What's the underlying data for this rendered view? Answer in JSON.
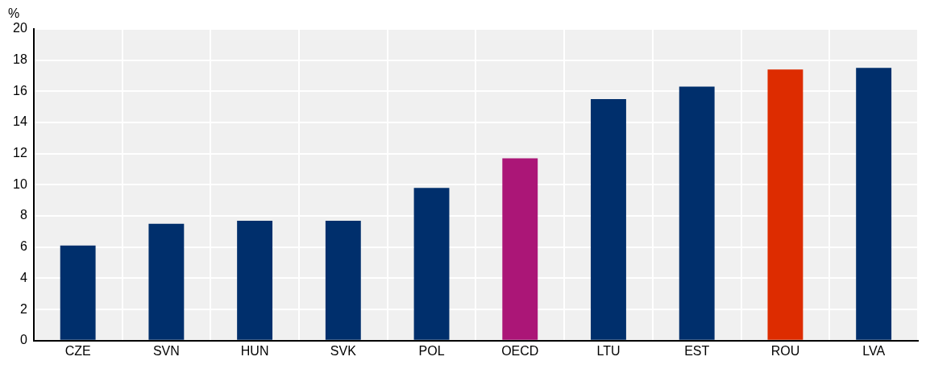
{
  "chart_data": {
    "type": "bar",
    "ylabel": "%",
    "categories": [
      "CZE",
      "SVN",
      "HUN",
      "SVK",
      "POL",
      "OECD",
      "LTU",
      "EST",
      "ROU",
      "LVA"
    ],
    "values": [
      6.1,
      7.5,
      7.7,
      7.7,
      9.8,
      11.7,
      15.5,
      16.3,
      17.4,
      17.5
    ],
    "colors": [
      "#002f6c",
      "#002f6c",
      "#002f6c",
      "#002f6c",
      "#002f6c",
      "#ab1677",
      "#002f6c",
      "#002f6c",
      "#dd2c00",
      "#002f6c"
    ],
    "ylim": [
      0,
      20
    ],
    "yticks": [
      0,
      2,
      4,
      6,
      8,
      10,
      12,
      14,
      16,
      18,
      20
    ],
    "grid": true,
    "legend": false
  }
}
